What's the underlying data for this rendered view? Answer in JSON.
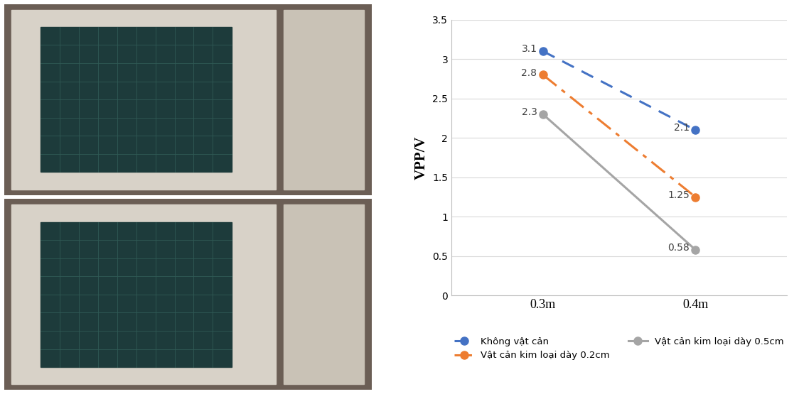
{
  "chart_data": {
    "type": "line",
    "categories": [
      "0.3m",
      "0.4m"
    ],
    "y_label": "VPP/V",
    "ylim": [
      0,
      3.5
    ],
    "yticks": [
      0,
      0.5,
      1,
      1.5,
      2,
      2.5,
      3,
      3.5
    ],
    "grid": true,
    "legend": "bottom",
    "data_labels": true,
    "series": [
      {
        "name": "Không vật cản",
        "color": "#4472c4",
        "line_style": "dashed",
        "marker": "circle",
        "values": [
          3.1,
          2.1
        ]
      },
      {
        "name": "Vật cản kim loại dày 0.2cm",
        "color": "#ed7d31",
        "line_style": "dashdot",
        "marker": "circle",
        "values": [
          2.8,
          1.25
        ]
      },
      {
        "name": "Vật cản kim loại dày 0.5cm",
        "color": "#a5a5a5",
        "line_style": "solid",
        "marker": "circle",
        "values": [
          2.3,
          0.58
        ]
      }
    ]
  }
}
